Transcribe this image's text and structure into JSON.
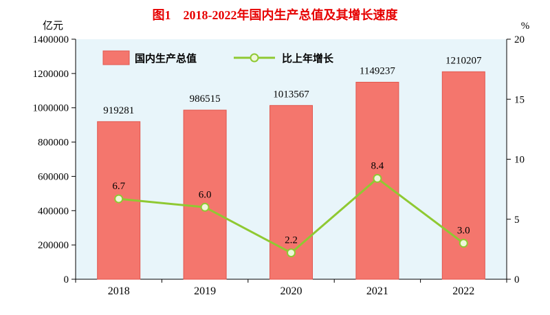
{
  "title": "图1　2018-2022年国内生产总值及其增长速度",
  "left_axis_unit": "亿元",
  "right_axis_unit": "%",
  "legend": {
    "bar_label": "国内生产总值",
    "line_label": "比上年增长"
  },
  "colors": {
    "title": "#e60000",
    "bar": "#f4766d",
    "bar_border": "#e2564d",
    "line": "#8fc932",
    "marker_fill": "#eef7d9",
    "plot_bg": "#e8f5fa",
    "axis": "#000000"
  },
  "chart_data": {
    "type": "bar+line combo",
    "title": "图1　2018-2022年国内生产总值及其增长速度",
    "categories": [
      "2018",
      "2019",
      "2020",
      "2021",
      "2022"
    ],
    "series": [
      {
        "name": "国内生产总值",
        "type": "bar",
        "axis": "left",
        "unit": "亿元",
        "values": [
          919281,
          986515,
          1013567,
          1149237,
          1210207
        ]
      },
      {
        "name": "比上年增长",
        "type": "line",
        "axis": "right",
        "unit": "%",
        "values": [
          6.7,
          6.0,
          2.2,
          8.4,
          3.0
        ]
      }
    ],
    "left_axis": {
      "min": 0,
      "max": 1400000,
      "step": 200000
    },
    "right_axis": {
      "min": 0,
      "max": 20,
      "step": 5
    },
    "grid": false,
    "legend_position": "top-inside"
  }
}
